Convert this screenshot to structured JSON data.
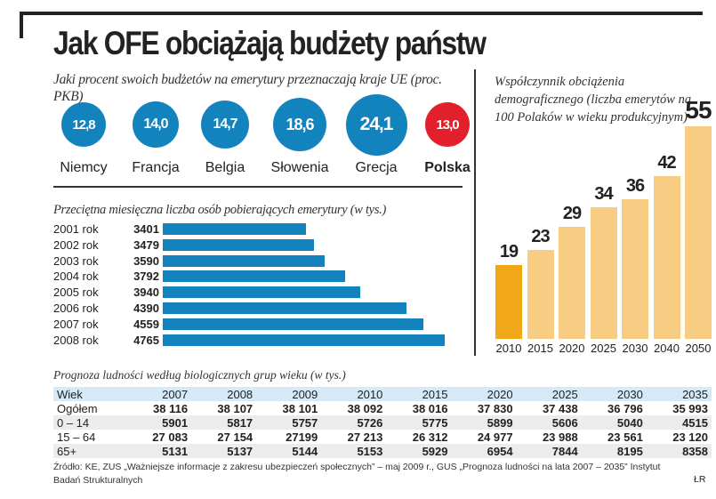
{
  "title": "Jak OFE obciążają budżety państw",
  "chart_data": [
    {
      "type": "bubble",
      "title": "Jaki procent swoich budżetów na emerytury przeznaczają kraje UE (proc. PKB)",
      "categories": [
        "Niemcy",
        "Francja",
        "Belgia",
        "Słowenia",
        "Grecja",
        "Polska"
      ],
      "values": [
        "12,8",
        "14,0",
        "14,7",
        "18,6",
        "24,1",
        "13,0"
      ],
      "numeric": [
        12.8,
        14.0,
        14.7,
        18.6,
        24.1,
        13.0
      ],
      "colors": [
        "#1383be",
        "#1383be",
        "#1383be",
        "#1383be",
        "#1383be",
        "#e2202b"
      ]
    },
    {
      "type": "bar",
      "orientation": "horizontal",
      "title": "Przeciętna miesięczna liczba osób pobierających emerytury (w tys.)",
      "categories": [
        "2001 rok",
        "2002 rok",
        "2003 rok",
        "2004 rok",
        "2005 rok",
        "2006 rok",
        "2007 rok",
        "2008 rok"
      ],
      "values": [
        3401,
        3479,
        3590,
        3792,
        3940,
        4390,
        4559,
        4765
      ],
      "xlim": [
        2000,
        4765
      ],
      "color": "#1383be"
    },
    {
      "type": "bar",
      "title": "Współczynnik obciążenia demograficznego (liczba emerytów na 100 Polaków w wieku produkcyjnym)",
      "categories": [
        "2010",
        "2015",
        "2020",
        "2025",
        "2030",
        "2040",
        "2050"
      ],
      "values": [
        19,
        23,
        29,
        34,
        36,
        42,
        55
      ],
      "ylim": [
        0,
        55
      ],
      "colors": [
        "#f0a818",
        "#f9cc84",
        "#f9cc84",
        "#f9cc84",
        "#f9cc84",
        "#f9cc84",
        "#f9cc84"
      ]
    },
    {
      "type": "table",
      "title": "Prognoza ludności według biologicznych grup wieku (w tys.)",
      "header": [
        "Wiek",
        "2007",
        "2008",
        "2009",
        "2010",
        "2015",
        "2020",
        "2025",
        "2030",
        "2035"
      ],
      "rows": [
        [
          "Ogółem",
          "38 116",
          "38 107",
          "38 101",
          "38 092",
          "38 016",
          "37 830",
          "37 438",
          "36 796",
          "35 993"
        ],
        [
          "0 – 14",
          "5901",
          "5817",
          "5757",
          "5726",
          "5775",
          "5899",
          "5606",
          "5040",
          "4515"
        ],
        [
          "15 – 64",
          "27 083",
          "27 154",
          "27199",
          "27 213",
          "26 312",
          "24 977",
          "23 988",
          "23 561",
          "23 120"
        ],
        [
          "65+",
          "5131",
          "5137",
          "5144",
          "5153",
          "5929",
          "6954",
          "7844",
          "8195",
          "8358"
        ]
      ]
    }
  ],
  "source": "Źródło: KE, ZUS „Ważniejsze informacje z zakresu ubezpieczeń społecznych” – maj 2009 r., GUS „Prognoza ludności na lata 2007 – 2035” Instytut Badań Strukturalnych",
  "author": "ŁR"
}
